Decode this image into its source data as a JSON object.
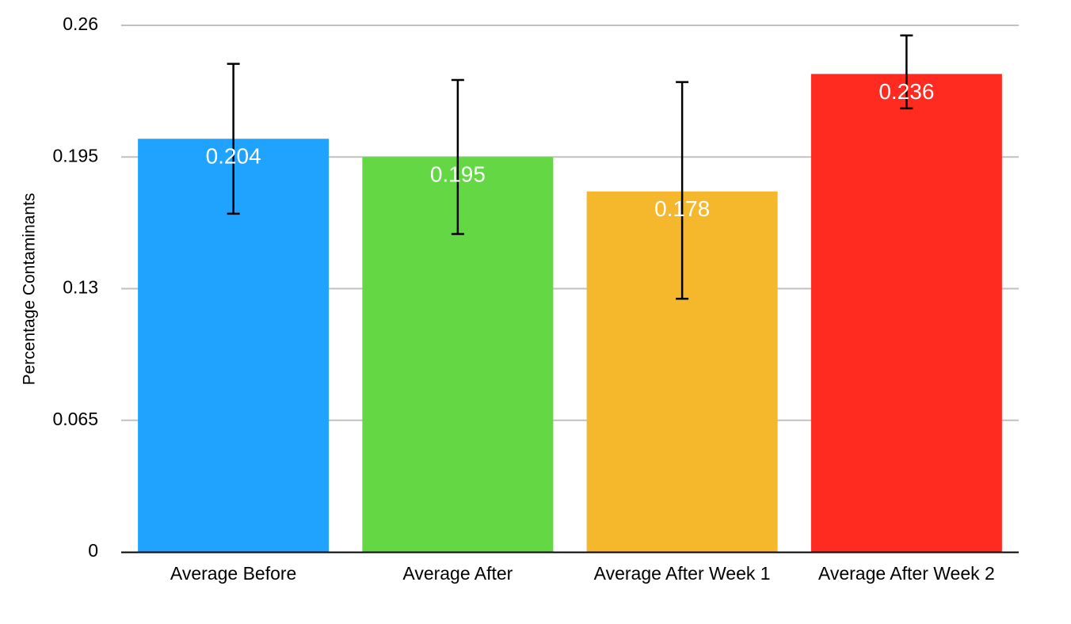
{
  "chart_data": {
    "type": "bar",
    "title": "",
    "xlabel": "",
    "ylabel": "Percentage Contaminants",
    "ylim": [
      0,
      0.26
    ],
    "yticks": [
      "0",
      "0.065",
      "0.13",
      "0.195",
      "0.26"
    ],
    "ytick_values": [
      0,
      0.065,
      0.13,
      0.195,
      0.26
    ],
    "grid": true,
    "legend": "none",
    "categories": [
      "Average Before",
      "Average After",
      "Average After Week 1",
      "Average After Week 2"
    ],
    "values": [
      0.204,
      0.195,
      0.178,
      0.236
    ],
    "value_labels": [
      "0.204",
      "0.195",
      "0.178",
      "0.236"
    ],
    "error_bars": [
      {
        "low": 0.167,
        "high": 0.241
      },
      {
        "low": 0.157,
        "high": 0.233
      },
      {
        "low": 0.125,
        "high": 0.232
      },
      {
        "low": 0.219,
        "high": 0.255
      }
    ],
    "colors": [
      "#1fa3fe",
      "#63d844",
      "#f5b82d",
      "#ff2b20"
    ]
  }
}
